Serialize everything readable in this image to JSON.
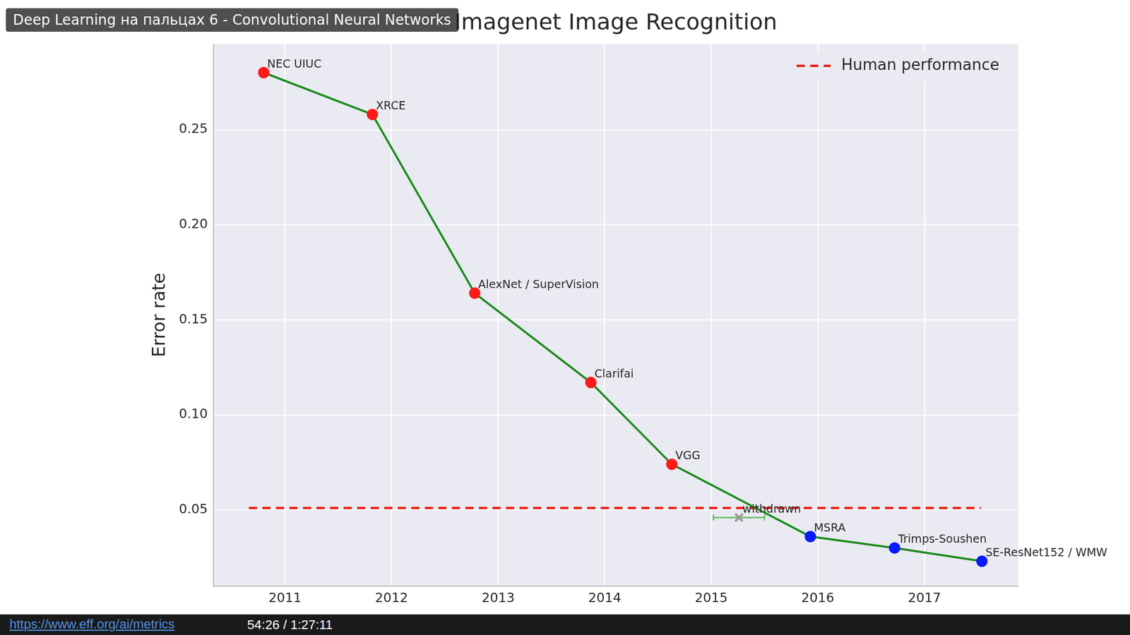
{
  "chart_data": {
    "type": "line",
    "title": "Imagenet Image Recognition",
    "y_label": "Error rate",
    "x": [
      2010.8,
      2011.82,
      2012.78,
      2013.87,
      2014.63,
      2015.93,
      2016.72,
      2017.54
    ],
    "values": [
      0.28,
      0.258,
      0.164,
      0.117,
      0.074,
      0.036,
      0.03,
      0.023
    ],
    "point_labels": [
      "NEC UIUC",
      "XRCE",
      "AlexNet / SuperVision",
      "Clarifai",
      "VGG",
      "MSRA",
      "Trimps-Soushen",
      "SE-ResNet152 / WMW"
    ],
    "colors": [
      "#ff1a1a",
      "#ff1a1a",
      "#ff1a1a",
      "#ff1a1a",
      "#ff1a1a",
      "#0a1aff",
      "#0a1aff",
      "#0a1aff"
    ],
    "color": "#1a8a1a",
    "marker": "circle",
    "withdrawn": {
      "label": "withdrawn",
      "x": 2015.26,
      "value": 0.046,
      "xerr": 0.24,
      "color": "#9a9a9a",
      "error_color": "#66bb66",
      "marker": "cross"
    },
    "reference": {
      "name": "Human performance",
      "x": [
        2010.66,
        2017.53
      ],
      "values": [
        0.051,
        0.051
      ],
      "color": "#e8221a",
      "line_style": "dashed"
    },
    "xlim": [
      2010.33,
      2017.88
    ],
    "xticks": [
      2011,
      2012,
      2013,
      2014,
      2015,
      2016,
      2017
    ],
    "ylim": [
      0.01,
      0.295
    ],
    "yticks": [
      0.05,
      {
        "value": 0.1,
        "label": "0.10"
      },
      0.15,
      {
        "value": 0.2,
        "label": "0.20"
      },
      0.25
    ],
    "grid": true,
    "legend": "upper right"
  },
  "video": {
    "title": "Deep Learning на пальцах 6 - Convolutional Neural Networks",
    "url": "https://www.eff.org/ai/metrics",
    "time": "54:26 / 1:27:11"
  }
}
